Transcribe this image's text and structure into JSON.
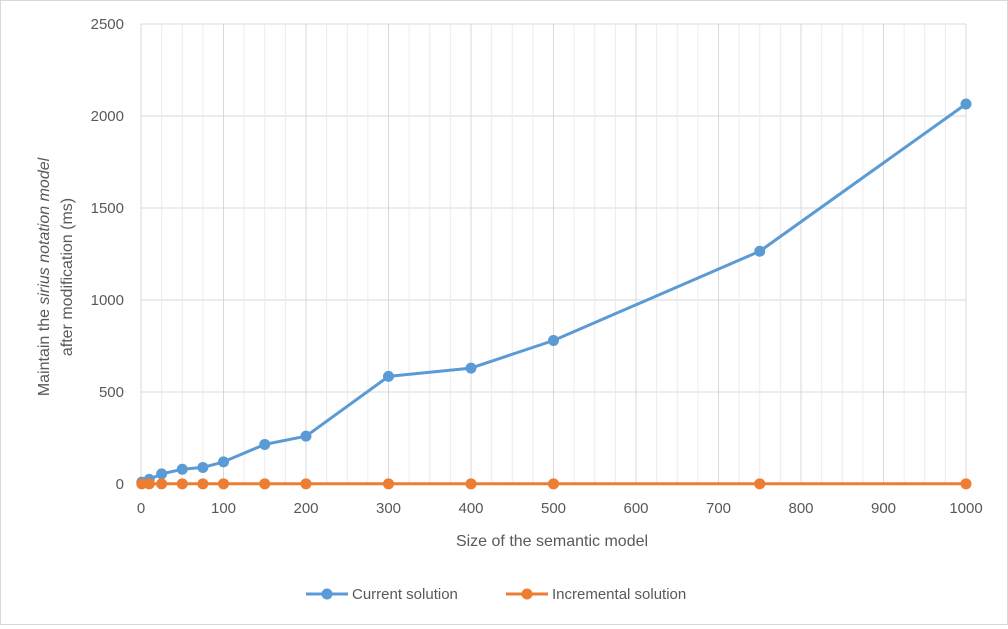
{
  "chart_data": {
    "type": "line",
    "title": "",
    "xlabel": "Size of the semantic model",
    "ylabel": {
      "part1": "Maintain the ",
      "emphasis": "sirius notation model",
      "line2": "after modification (ms)"
    },
    "xlim": [
      0,
      1000
    ],
    "ylim": [
      0,
      2500
    ],
    "x_ticks": [
      0,
      100,
      200,
      300,
      400,
      500,
      600,
      700,
      800,
      900,
      1000
    ],
    "y_ticks": [
      0,
      500,
      1000,
      1500,
      2000,
      2500
    ],
    "grid": true,
    "legend_position": "bottom",
    "series": [
      {
        "name": "Current solution",
        "color": "#5b9bd5",
        "x": [
          1,
          10,
          25,
          50,
          75,
          100,
          150,
          200,
          300,
          400,
          500,
          750,
          1000
        ],
        "y": [
          10,
          25,
          55,
          80,
          90,
          120,
          215,
          260,
          585,
          630,
          780,
          1265,
          2065
        ]
      },
      {
        "name": "Incremental solution",
        "color": "#ed7d31",
        "x": [
          1,
          10,
          25,
          50,
          75,
          100,
          150,
          200,
          300,
          400,
          500,
          750,
          1000
        ],
        "y": [
          1,
          1,
          1,
          1,
          1,
          1,
          1,
          1,
          1,
          1,
          1,
          1,
          1
        ]
      }
    ]
  }
}
